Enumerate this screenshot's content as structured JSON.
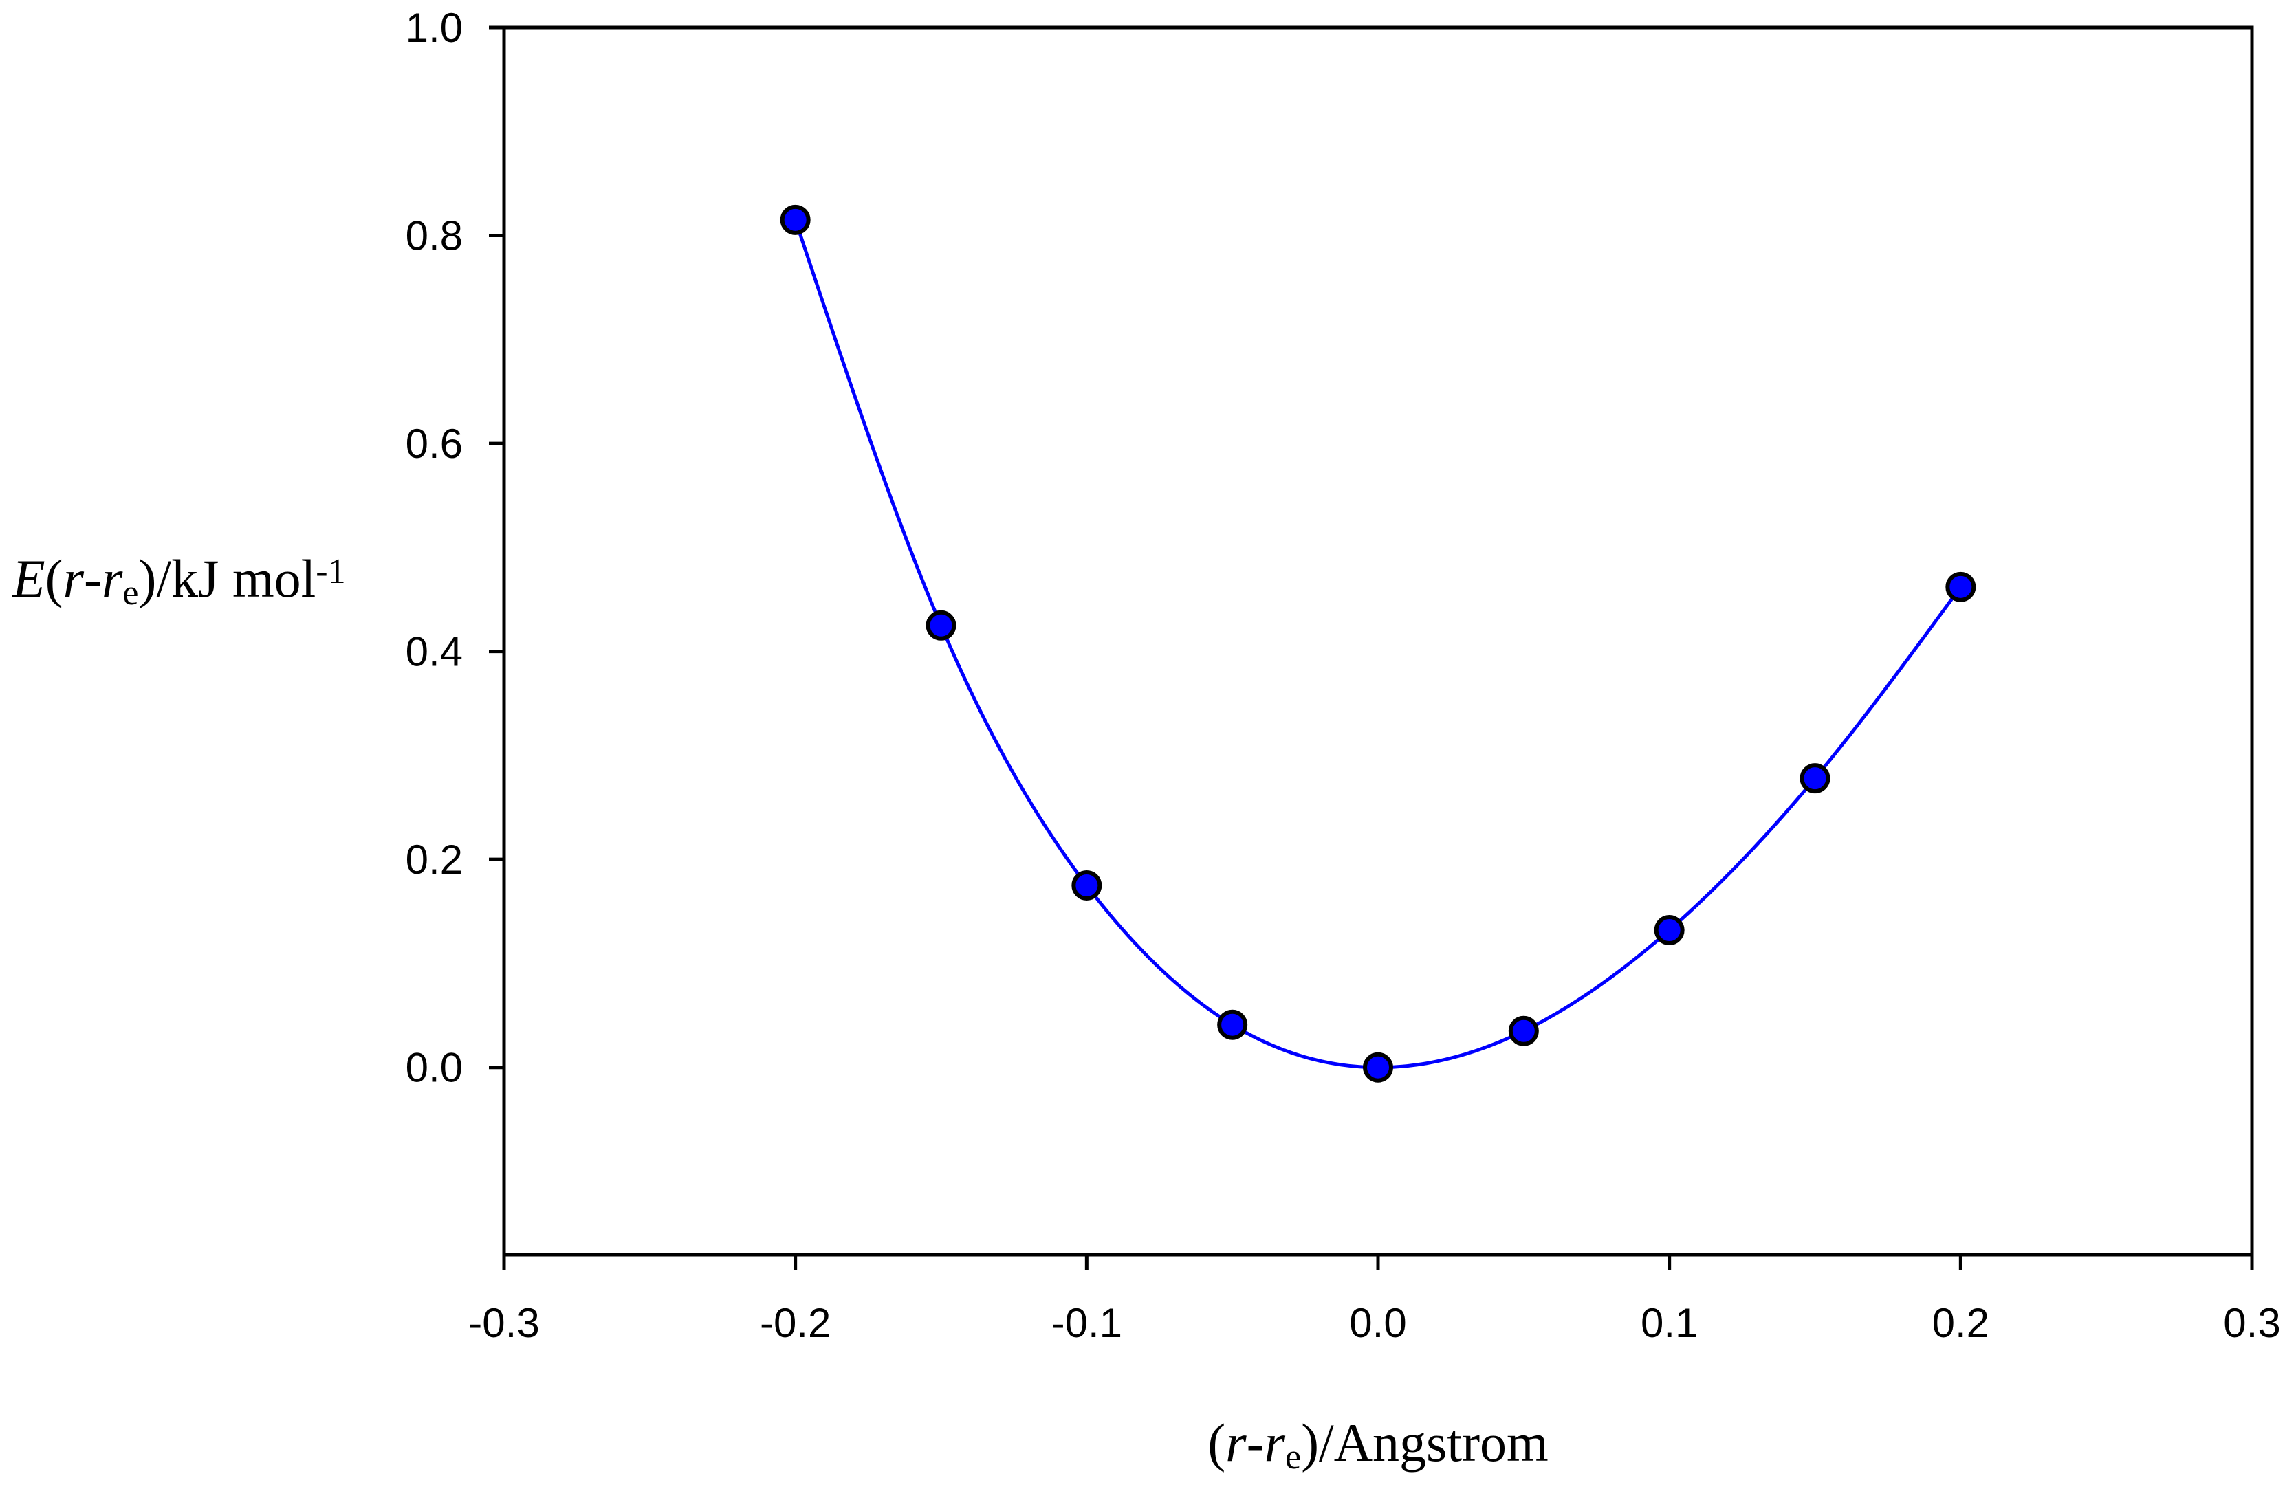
{
  "chart_data": {
    "type": "scatter",
    "title": "",
    "xlabel": {
      "text": "(r-re)/Angstrom",
      "parts": [
        {
          "t": "(",
          "style": "normal"
        },
        {
          "t": "r",
          "style": "italic"
        },
        {
          "t": "-",
          "style": "normal"
        },
        {
          "t": "r",
          "style": "italic"
        },
        {
          "t": "e",
          "style": "sub"
        },
        {
          "t": ")/Angstrom",
          "style": "normal"
        }
      ]
    },
    "ylabel": {
      "text": "E(r-re)/kJ mol-1",
      "parts": [
        {
          "t": "E",
          "style": "italic"
        },
        {
          "t": "(",
          "style": "normal"
        },
        {
          "t": "r",
          "style": "italic"
        },
        {
          "t": "-",
          "style": "normal"
        },
        {
          "t": "r",
          "style": "italic"
        },
        {
          "t": "e",
          "style": "sub"
        },
        {
          "t": ")/kJ mol",
          "style": "normal"
        },
        {
          "t": "-1",
          "style": "sup"
        }
      ]
    },
    "xlim": [
      -0.3,
      0.3
    ],
    "ylim": [
      -0.18,
      1.0
    ],
    "xticks": [
      -0.3,
      -0.2,
      -0.1,
      0.0,
      0.1,
      0.2,
      0.3
    ],
    "xtick_labels": [
      "-0.3",
      "-0.2",
      "-0.1",
      "0.0",
      "0.1",
      "0.2",
      "0.3"
    ],
    "yticks": [
      0.0,
      0.2,
      0.4,
      0.6,
      0.8,
      1.0
    ],
    "ytick_labels": [
      "0.0",
      "0.2",
      "0.4",
      "0.6",
      "0.8",
      "1.0"
    ],
    "grid": false,
    "series": [
      {
        "name": "data",
        "x": [
          -0.2,
          -0.15,
          -0.1,
          -0.05,
          0.0,
          0.05,
          0.1,
          0.15,
          0.2
        ],
        "y": [
          0.815,
          0.425,
          0.175,
          0.041,
          0.0,
          0.035,
          0.132,
          0.278,
          0.462
        ],
        "color": "#0000ff",
        "marker_edge": "#000000",
        "line_color": "#0000ff",
        "line": "smooth"
      }
    ]
  }
}
